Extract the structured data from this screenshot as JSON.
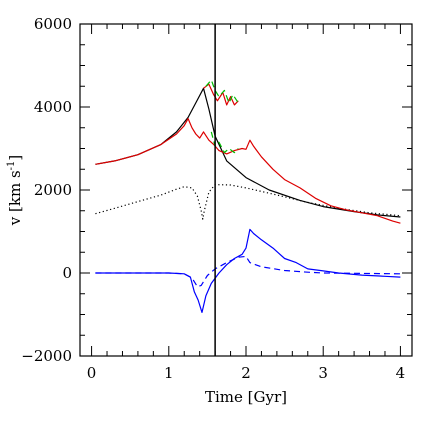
{
  "chart_data": {
    "type": "line",
    "xlabel": "Time [Gyr]",
    "ylabel": "v [km s",
    "ylabel_sup": "-1",
    "ylabel_end": "]",
    "xlim": [
      -0.15,
      4.15
    ],
    "ylim": [
      -2000,
      6000
    ],
    "x_major_ticks": [
      0,
      1,
      2,
      3,
      4
    ],
    "x_minor_step": 0.2,
    "y_major_ticks": [
      -2000,
      0,
      2000,
      4000,
      6000
    ],
    "y_minor_step": 500,
    "x_tick_labels": [
      "0",
      "1",
      "2",
      "3",
      "4"
    ],
    "y_tick_labels": [
      "−2000",
      "0",
      "2000",
      "4000",
      "6000"
    ],
    "vertical_line_x": 1.6,
    "series": [
      {
        "color": "#000000",
        "dash": "solid",
        "points": [
          [
            0.05,
            2620
          ],
          [
            0.3,
            2700
          ],
          [
            0.6,
            2850
          ],
          [
            0.9,
            3100
          ],
          [
            1.1,
            3400
          ],
          [
            1.25,
            3750
          ],
          [
            1.35,
            4100
          ],
          [
            1.45,
            4450
          ],
          [
            1.52,
            3950
          ],
          [
            1.6,
            3300
          ],
          [
            1.75,
            2700
          ],
          [
            2.0,
            2300
          ],
          [
            2.3,
            2000
          ],
          [
            2.7,
            1750
          ],
          [
            3.0,
            1600
          ],
          [
            3.4,
            1480
          ],
          [
            3.7,
            1400
          ],
          [
            4.0,
            1350
          ]
        ]
      },
      {
        "color": "#000000",
        "dash": "dot",
        "points": [
          [
            0.05,
            1430
          ],
          [
            0.3,
            1560
          ],
          [
            0.6,
            1720
          ],
          [
            0.9,
            1880
          ],
          [
            1.1,
            2020
          ],
          [
            1.2,
            2080
          ],
          [
            1.3,
            2050
          ],
          [
            1.37,
            1850
          ],
          [
            1.42,
            1500
          ],
          [
            1.44,
            1300
          ],
          [
            1.46,
            1500
          ],
          [
            1.52,
            1950
          ],
          [
            1.6,
            2130
          ],
          [
            1.8,
            2120
          ],
          [
            2.0,
            2050
          ],
          [
            2.4,
            1880
          ],
          [
            2.8,
            1700
          ],
          [
            3.2,
            1560
          ],
          [
            3.6,
            1450
          ],
          [
            4.0,
            1380
          ]
        ]
      },
      {
        "color": "#dd0000",
        "dash": "solid",
        "points": [
          [
            0.05,
            2620
          ],
          [
            0.3,
            2700
          ],
          [
            0.6,
            2850
          ],
          [
            0.9,
            3100
          ],
          [
            1.1,
            3350
          ],
          [
            1.2,
            3550
          ],
          [
            1.25,
            3720
          ],
          [
            1.3,
            3500
          ],
          [
            1.35,
            3350
          ],
          [
            1.4,
            3250
          ],
          [
            1.45,
            3400
          ],
          [
            1.52,
            3200
          ],
          [
            1.58,
            3100
          ],
          [
            1.65,
            2950
          ],
          [
            1.75,
            2870
          ],
          [
            1.85,
            2950
          ],
          [
            1.95,
            3000
          ],
          [
            2.0,
            2980
          ],
          [
            2.05,
            3200
          ],
          [
            2.1,
            3050
          ],
          [
            2.2,
            2800
          ],
          [
            2.35,
            2500
          ],
          [
            2.5,
            2250
          ],
          [
            2.7,
            2050
          ],
          [
            2.9,
            1800
          ],
          [
            3.1,
            1620
          ],
          [
            3.3,
            1520
          ],
          [
            3.5,
            1450
          ],
          [
            3.7,
            1380
          ],
          [
            3.9,
            1250
          ],
          [
            4.0,
            1200
          ]
        ]
      },
      {
        "color": "#dd0000",
        "dash": "solid",
        "points": [
          [
            1.45,
            4450
          ],
          [
            1.52,
            4550
          ],
          [
            1.58,
            4300
          ],
          [
            1.63,
            4150
          ],
          [
            1.7,
            4350
          ],
          [
            1.75,
            4050
          ],
          [
            1.8,
            4250
          ],
          [
            1.85,
            4050
          ],
          [
            1.9,
            4150
          ]
        ]
      },
      {
        "color": "#00bb00",
        "dash": "dash",
        "points": [
          [
            1.48,
            4500
          ],
          [
            1.55,
            4650
          ],
          [
            1.6,
            4400
          ],
          [
            1.65,
            4250
          ],
          [
            1.72,
            4400
          ],
          [
            1.78,
            4100
          ],
          [
            1.83,
            4300
          ],
          [
            1.9,
            4100
          ]
        ]
      },
      {
        "color": "#00bb00",
        "dash": "dash",
        "points": [
          [
            1.55,
            3400
          ],
          [
            1.6,
            3050
          ],
          [
            1.65,
            3150
          ],
          [
            1.72,
            2900
          ],
          [
            1.78,
            3000
          ],
          [
            1.85,
            2900
          ],
          [
            1.9,
            3000
          ]
        ]
      },
      {
        "color": "#0000ff",
        "dash": "solid",
        "points": [
          [
            0.05,
            0
          ],
          [
            0.5,
            0
          ],
          [
            1.0,
            0
          ],
          [
            1.2,
            -20
          ],
          [
            1.28,
            -100
          ],
          [
            1.33,
            -450
          ],
          [
            1.38,
            -650
          ],
          [
            1.43,
            -950
          ],
          [
            1.48,
            -550
          ],
          [
            1.55,
            -250
          ],
          [
            1.65,
            0
          ],
          [
            1.75,
            200
          ],
          [
            1.85,
            350
          ],
          [
            1.95,
            450
          ],
          [
            2.0,
            600
          ],
          [
            2.05,
            1050
          ],
          [
            2.1,
            950
          ],
          [
            2.2,
            800
          ],
          [
            2.35,
            600
          ],
          [
            2.5,
            350
          ],
          [
            2.65,
            250
          ],
          [
            2.8,
            100
          ],
          [
            3.0,
            50
          ],
          [
            3.2,
            0
          ],
          [
            3.5,
            -50
          ],
          [
            3.8,
            -80
          ],
          [
            4.0,
            -100
          ]
        ]
      },
      {
        "color": "#0000ff",
        "dash": "dash",
        "points": [
          [
            0.05,
            0
          ],
          [
            0.6,
            0
          ],
          [
            1.0,
            0
          ],
          [
            1.2,
            -20
          ],
          [
            1.3,
            -120
          ],
          [
            1.37,
            -330
          ],
          [
            1.42,
            -300
          ],
          [
            1.5,
            -60
          ],
          [
            1.6,
            100
          ],
          [
            1.75,
            250
          ],
          [
            1.9,
            380
          ],
          [
            2.0,
            400
          ],
          [
            2.05,
            250
          ],
          [
            2.2,
            150
          ],
          [
            2.5,
            60
          ],
          [
            2.8,
            20
          ],
          [
            3.0,
            0
          ],
          [
            4.0,
            -20
          ]
        ]
      }
    ]
  }
}
